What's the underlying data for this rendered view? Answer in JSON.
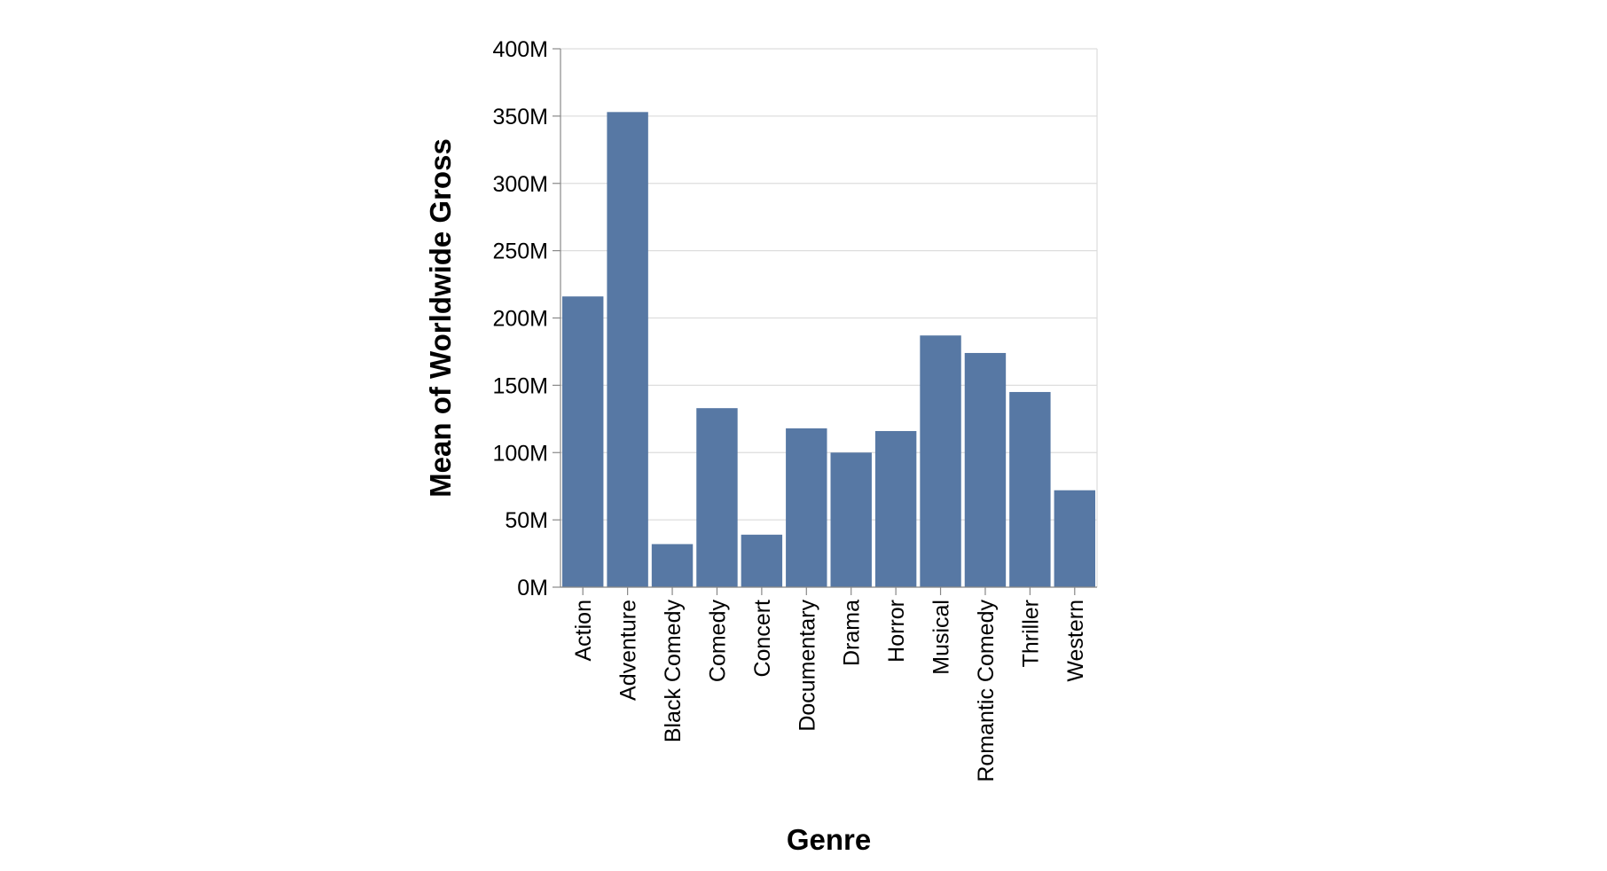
{
  "chart_data": {
    "type": "bar",
    "title": "",
    "xlabel": "Genre",
    "ylabel": "Mean of Worldwide Gross",
    "categories": [
      "Action",
      "Adventure",
      "Black Comedy",
      "Comedy",
      "Concert",
      "Documentary",
      "Drama",
      "Horror",
      "Musical",
      "Romantic Comedy",
      "Thriller",
      "Western"
    ],
    "values": [
      216000000,
      353000000,
      32000000,
      133000000,
      39000000,
      118000000,
      100000000,
      116000000,
      187000000,
      174000000,
      145000000,
      72000000
    ],
    "ylim": [
      0,
      400000000
    ],
    "yticks": [
      0,
      50000000,
      100000000,
      150000000,
      200000000,
      250000000,
      300000000,
      350000000,
      400000000
    ],
    "ytick_labels": [
      "0M",
      "50M",
      "100M",
      "150M",
      "200M",
      "250M",
      "300M",
      "350M",
      "400M"
    ],
    "grid": true,
    "bar_color": "#5778a4",
    "grid_color": "#dddddd",
    "axis_color": "#888888"
  }
}
